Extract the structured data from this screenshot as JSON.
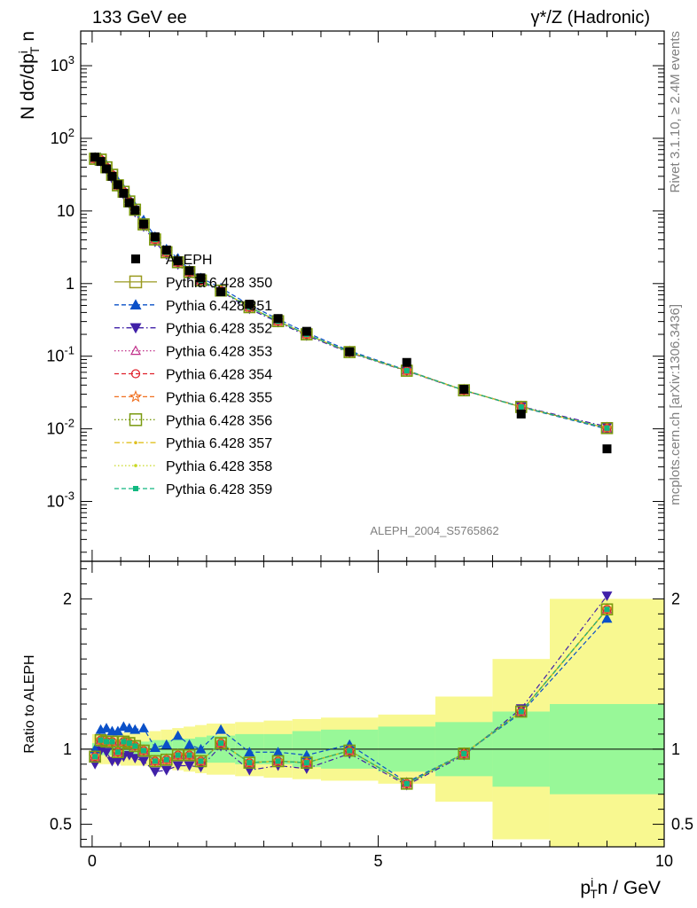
{
  "header": {
    "left": "133 GeV ee",
    "right": "γ*/Z (Hadronic)"
  },
  "side_text": {
    "top": "Rivet 3.1.10, ≥ 2.4M events",
    "bottom": "mcplots.cern.ch [arXiv:1306.3436]"
  },
  "analysis_id": "ALEPH_2004_S5765862",
  "chart_data": [
    {
      "type": "scatter",
      "panel": "main",
      "ylabel": "N dσ/dp_T^i n",
      "yscale": "log",
      "ylim": [
        0.00015,
        3000
      ],
      "xlim": [
        -0.2,
        10
      ],
      "ytick_labels": [
        "10^{-3}",
        "10^{-2}",
        "10^{-1}",
        "1",
        "10",
        "10^{2}",
        "10^{3}"
      ],
      "data": {
        "name": "ALEPH",
        "x": [
          0.05,
          0.15,
          0.25,
          0.35,
          0.45,
          0.55,
          0.65,
          0.75,
          0.9,
          1.1,
          1.3,
          1.5,
          1.7,
          1.9,
          2.25,
          2.75,
          3.25,
          3.75,
          4.5,
          5.5,
          6.5,
          7.5,
          9.0
        ],
        "y": [
          55,
          48,
          38,
          30,
          23,
          17.5,
          13,
          10.2,
          6.6,
          4.4,
          2.9,
          2.05,
          1.5,
          1.2,
          0.77,
          0.52,
          0.33,
          0.22,
          0.115,
          0.082,
          0.035,
          0.016,
          0.0053
        ]
      },
      "mc": {
        "x": [
          0.05,
          0.15,
          0.25,
          0.35,
          0.45,
          0.55,
          0.65,
          0.75,
          0.9,
          1.1,
          1.3,
          1.5,
          1.7,
          1.9,
          2.25,
          2.75,
          3.25,
          3.75,
          4.5,
          5.5,
          6.5,
          7.5,
          9.0
        ],
        "y": [
          52,
          50,
          40,
          32,
          24,
          18.5,
          13.8,
          10.5,
          6.5,
          4.0,
          2.75,
          1.95,
          1.5,
          1.13,
          0.8,
          0.47,
          0.3,
          0.2,
          0.114,
          0.061,
          0.034,
          0.02,
          0.0101
        ]
      }
    },
    {
      "type": "scatter",
      "panel": "ratio",
      "ylabel": "Ratio to ALEPH",
      "xlabel": "p_T^i n / GeV",
      "ylim": [
        0.35,
        2.25
      ],
      "xlim": [
        -0.2,
        10
      ],
      "ytick_labels": [
        "0.5",
        "1",
        "2"
      ],
      "xtick_labels": [
        "0",
        "5",
        "10"
      ],
      "uncertainty_bands": {
        "edges": [
          0.0,
          0.1,
          0.2,
          0.3,
          0.4,
          0.5,
          0.6,
          0.7,
          0.8,
          1.0,
          1.2,
          1.4,
          1.6,
          1.8,
          2.0,
          2.5,
          3.0,
          3.5,
          4.0,
          5.0,
          6.0,
          7.0,
          8.0,
          10.0
        ],
        "inner": [
          0.04,
          0.04,
          0.04,
          0.04,
          0.04,
          0.05,
          0.05,
          0.05,
          0.05,
          0.06,
          0.06,
          0.07,
          0.07,
          0.08,
          0.09,
          0.1,
          0.1,
          0.12,
          0.13,
          0.15,
          0.18,
          0.25,
          0.3
        ],
        "outer": [
          0.1,
          0.1,
          0.1,
          0.1,
          0.1,
          0.11,
          0.11,
          0.11,
          0.11,
          0.12,
          0.13,
          0.14,
          0.15,
          0.16,
          0.17,
          0.18,
          0.19,
          0.2,
          0.21,
          0.23,
          0.35,
          0.6,
          1.0
        ]
      },
      "x": [
        0.05,
        0.15,
        0.25,
        0.35,
        0.45,
        0.55,
        0.65,
        0.75,
        0.9,
        1.1,
        1.3,
        1.5,
        1.7,
        1.9,
        2.25,
        2.75,
        3.25,
        3.75,
        4.5,
        5.5,
        6.5,
        7.5,
        9.0
      ],
      "series": [
        {
          "name": "Pythia 6.428 350",
          "color": "#9a9a20",
          "style": "solid",
          "marker": "square-open",
          "values": [
            0.95,
            1.06,
            1.05,
            1.05,
            0.98,
            1.05,
            1.04,
            1.02,
            0.99,
            0.92,
            0.93,
            0.96,
            0.96,
            0.92,
            1.04,
            0.91,
            0.92,
            0.91,
            0.99,
            0.77,
            0.97,
            1.25,
            1.93
          ]
        },
        {
          "name": "Pythia 6.428 351",
          "color": "#0a50c8",
          "style": "dashed",
          "marker": "triangle-up",
          "values": [
            1.0,
            1.13,
            1.14,
            1.12,
            1.12,
            1.15,
            1.14,
            1.13,
            1.14,
            1.01,
            1.03,
            1.09,
            1.03,
            1.0,
            1.13,
            0.98,
            0.98,
            0.96,
            1.03,
            0.78,
            0.97,
            1.24,
            1.87
          ]
        },
        {
          "name": "Pythia 6.428 352",
          "color": "#4020a8",
          "style": "dashdot",
          "marker": "triangle-down",
          "values": [
            0.9,
            0.99,
            0.98,
            0.92,
            0.92,
            0.95,
            0.96,
            0.94,
            0.92,
            0.85,
            0.86,
            0.89,
            0.89,
            0.88,
            1.02,
            0.86,
            0.89,
            0.87,
            0.97,
            0.76,
            0.96,
            1.27,
            2.02
          ]
        },
        {
          "name": "Pythia 6.428 353",
          "color": "#c0308a",
          "style": "dotted",
          "marker": "triangle-open",
          "values": [
            0.95,
            1.06,
            1.05,
            1.05,
            0.98,
            1.05,
            1.04,
            1.02,
            0.99,
            0.92,
            0.93,
            0.96,
            0.96,
            0.92,
            1.04,
            0.91,
            0.92,
            0.91,
            0.99,
            0.77,
            0.97,
            1.25,
            1.93
          ]
        },
        {
          "name": "Pythia 6.428 354",
          "color": "#e0202a",
          "style": "dashed",
          "marker": "circle-open",
          "values": [
            0.95,
            1.06,
            1.05,
            1.05,
            0.98,
            1.05,
            1.04,
            1.02,
            0.99,
            0.92,
            0.93,
            0.96,
            0.96,
            0.92,
            1.04,
            0.91,
            0.92,
            0.91,
            0.99,
            0.77,
            0.97,
            1.25,
            1.93
          ]
        },
        {
          "name": "Pythia 6.428 355",
          "color": "#f07020",
          "style": "dashed",
          "marker": "star-open",
          "values": [
            0.95,
            1.06,
            1.05,
            1.05,
            0.98,
            1.05,
            1.04,
            1.02,
            0.99,
            0.92,
            0.93,
            0.96,
            0.96,
            0.92,
            1.04,
            0.91,
            0.92,
            0.91,
            0.99,
            0.77,
            0.97,
            1.25,
            1.93
          ]
        },
        {
          "name": "Pythia 6.428 356",
          "color": "#7a9a10",
          "style": "dotted",
          "marker": "square-open",
          "values": [
            0.95,
            1.06,
            1.05,
            1.05,
            0.98,
            1.05,
            1.04,
            1.02,
            0.99,
            0.92,
            0.93,
            0.96,
            0.96,
            0.92,
            1.04,
            0.91,
            0.92,
            0.91,
            0.99,
            0.77,
            0.97,
            1.25,
            1.93
          ]
        },
        {
          "name": "Pythia 6.428 357",
          "color": "#e0c020",
          "style": "dashdot",
          "marker": "dot",
          "values": [
            0.95,
            1.06,
            1.05,
            1.05,
            0.98,
            1.05,
            1.04,
            1.02,
            0.99,
            0.92,
            0.93,
            0.96,
            0.96,
            0.92,
            1.04,
            0.91,
            0.92,
            0.91,
            0.99,
            0.77,
            0.97,
            1.25,
            1.93
          ]
        },
        {
          "name": "Pythia 6.428 358",
          "color": "#c8d820",
          "style": "dotted",
          "marker": "dot",
          "values": [
            0.95,
            1.06,
            1.05,
            1.05,
            0.98,
            1.05,
            1.04,
            1.02,
            0.99,
            0.92,
            0.93,
            0.96,
            0.96,
            0.92,
            1.04,
            0.91,
            0.92,
            0.91,
            0.99,
            0.77,
            0.97,
            1.25,
            1.93
          ]
        },
        {
          "name": "Pythia 6.428 359",
          "color": "#10b880",
          "style": "dashed",
          "marker": "square-filled",
          "values": [
            0.95,
            1.06,
            1.05,
            1.05,
            0.98,
            1.05,
            1.04,
            1.02,
            0.99,
            0.92,
            0.93,
            0.96,
            0.96,
            0.92,
            1.04,
            0.91,
            0.92,
            0.91,
            0.99,
            0.77,
            0.97,
            1.25,
            1.93
          ]
        }
      ]
    }
  ],
  "legend": {
    "data_label": "ALEPH",
    "placement": "mid-left"
  },
  "colors": {
    "band_inner": "#98f898",
    "band_outer": "#f8f890"
  }
}
